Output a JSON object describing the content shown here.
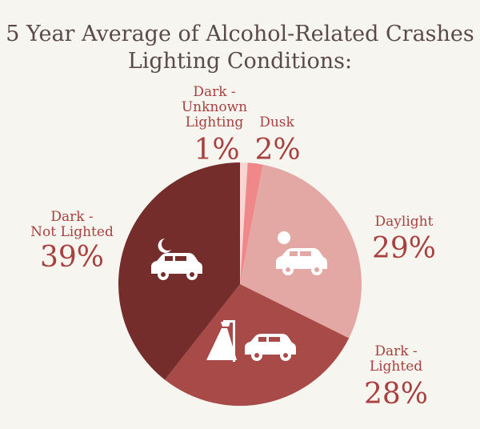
{
  "title": {
    "line1": "5 Year Average of Alcohol-Related Crashes",
    "line2": "Lighting Conditions:"
  },
  "chart_data": {
    "type": "pie",
    "title": "5 Year Average of Alcohol-Related Crashes Lighting Conditions:",
    "slices": [
      {
        "name": "Dark - Unknown Lighting",
        "label_line1": "Dark -",
        "label_line2": "Unknown",
        "label_line3": "Lighting",
        "value": 1,
        "value_label": "1%",
        "color": "#f6d6d2"
      },
      {
        "name": "Dusk",
        "label_line1": "Dusk",
        "value": 2,
        "value_label": "2%",
        "color": "#f0888a"
      },
      {
        "name": "Daylight",
        "label_line1": "Daylight",
        "value": 29,
        "value_label": "29%",
        "color": "#e3a8a4"
      },
      {
        "name": "Dark - Lighted",
        "label_line1": "Dark -",
        "label_line2": "Lighted",
        "value": 28,
        "value_label": "28%",
        "color": "#a84a47"
      },
      {
        "name": "Dark - Not Lighted",
        "label_line1": "Dark -",
        "label_line2": "Not Lighted",
        "value": 39,
        "value_label": "39%",
        "color": "#742d2b"
      }
    ],
    "start": "top",
    "direction": "clockwise"
  },
  "icons": {
    "daylight": "sun-car-icon",
    "dark_lighted": "streetlight-car-icon",
    "dark_not_lighted": "moon-car-icon"
  },
  "colors": {
    "label": "#a8413f",
    "title": "#5a4a48",
    "background": "#f6f5ef"
  }
}
